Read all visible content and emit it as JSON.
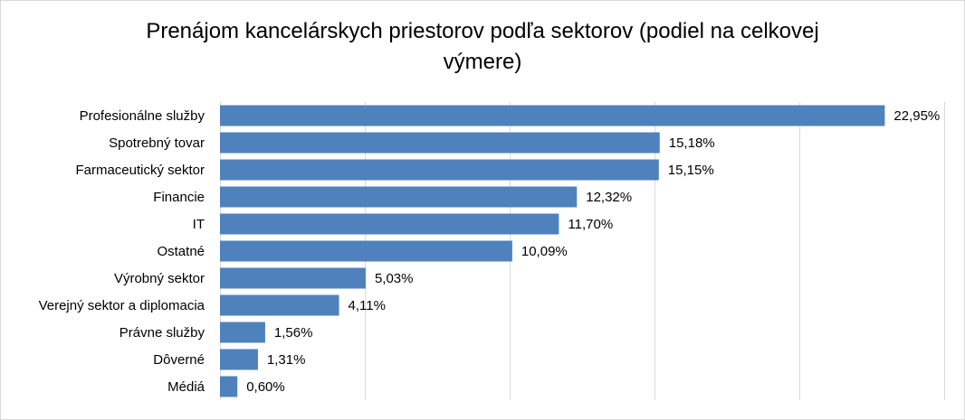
{
  "chart_data": {
    "type": "bar",
    "orientation": "horizontal",
    "title": "Prenájom kancelárskych priestorov podľa sektorov (podiel na celkovej výmere)",
    "title_lines": [
      "Prenájom kancelárskych priestorov podľa sektorov (podiel na celkovej",
      "výmere)"
    ],
    "categories": [
      "Profesionálne služby",
      "Spotrebný tovar",
      "Farmaceutický sektor",
      "Financie",
      "IT",
      "Ostatné",
      "Výrobný sektor",
      "Verejný sektor a diplomacia",
      "Právne služby",
      "Dôverné",
      "Médiá"
    ],
    "values": [
      22.95,
      15.18,
      15.15,
      12.32,
      11.7,
      10.09,
      5.03,
      4.11,
      1.56,
      1.31,
      0.6
    ],
    "value_labels": [
      "22,95%",
      "15,18%",
      "15,15%",
      "12,32%",
      "11,70%",
      "10,09%",
      "5,03%",
      "4,11%",
      "1,56%",
      "1,31%",
      "0,60%"
    ],
    "xlim": [
      0,
      25
    ],
    "gridlines": "vertical",
    "axis_labels_shown": false,
    "legend": "none",
    "bar_color": "#4F81BD",
    "grid_color": "#d9d9d9"
  }
}
